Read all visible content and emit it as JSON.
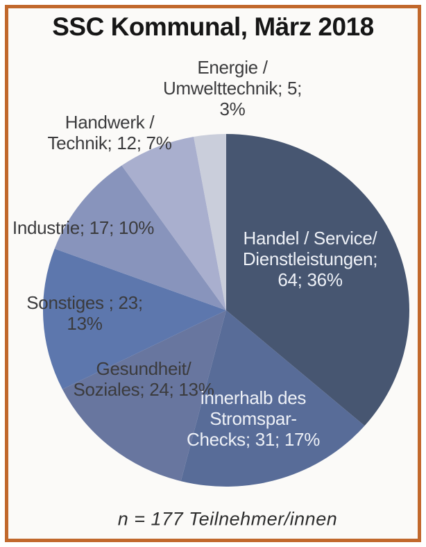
{
  "title": "SSC Kommunal, März 2018",
  "caption": "n = 177 Teilnehmer/innen",
  "frame_color": "#c1682c",
  "background_color": "#fbfaf8",
  "chart_data": {
    "type": "pie",
    "title": "SSC Kommunal, März 2018",
    "subtitle": "",
    "total_caption": "n = 177 Teilnehmer/innen",
    "n_total": 177,
    "start_angle_deg": 0,
    "direction": "clockwise",
    "legend_position": "labels-on-chart",
    "segments": [
      {
        "key": "handel",
        "name": "Handel / Service/ Dienstleistungen",
        "value": 64,
        "percent": "36%",
        "color": "#475671",
        "label_color": "#eef1f7",
        "label_lines": [
          "Handel / Service/",
          "Dienstleistungen;",
          "64; 36%"
        ]
      },
      {
        "key": "innerhalb",
        "name": "innerhalb des Stromspar-Checks",
        "value": 31,
        "percent": "17%",
        "color": "#586c98",
        "label_color": "#eef1f7",
        "label_lines": [
          "innerhalb des",
          "Stromspar-",
          "Checks; 31; 17%"
        ]
      },
      {
        "key": "gesundheit",
        "name": "Gesundheit/Soziales",
        "value": 24,
        "percent": "13%",
        "color": "#68769f",
        "label_color": "#3b3b3d",
        "label_lines": [
          "Gesundheit/",
          "Soziales; 24; 13%"
        ]
      },
      {
        "key": "sonstiges",
        "name": "Sonstiges",
        "value": 23,
        "percent": "13%",
        "color": "#5d77ad",
        "label_color": "#3b3b3d",
        "label_lines": [
          "Sonstiges ; 23;",
          "13%"
        ]
      },
      {
        "key": "industrie",
        "name": "Industrie",
        "value": 17,
        "percent": "10%",
        "color": "#8894bc",
        "label_color": "#3b3b3d",
        "label_lines": [
          "Industrie; 17; 10%"
        ]
      },
      {
        "key": "handwerk",
        "name": "Handwerk / Technik",
        "value": 12,
        "percent": "7%",
        "color": "#a9afce",
        "label_color": "#3b3b3d",
        "label_lines": [
          "Handwerk /",
          "Technik; 12; 7%"
        ]
      },
      {
        "key": "energie",
        "name": "Energie / Umwelttechnik",
        "value": 5,
        "percent": "3%",
        "color": "#cacedb",
        "label_color": "#3b3b3d",
        "label_lines": [
          "Energie /",
          "Umwelttechnik; 5;",
          "3%"
        ]
      }
    ]
  }
}
